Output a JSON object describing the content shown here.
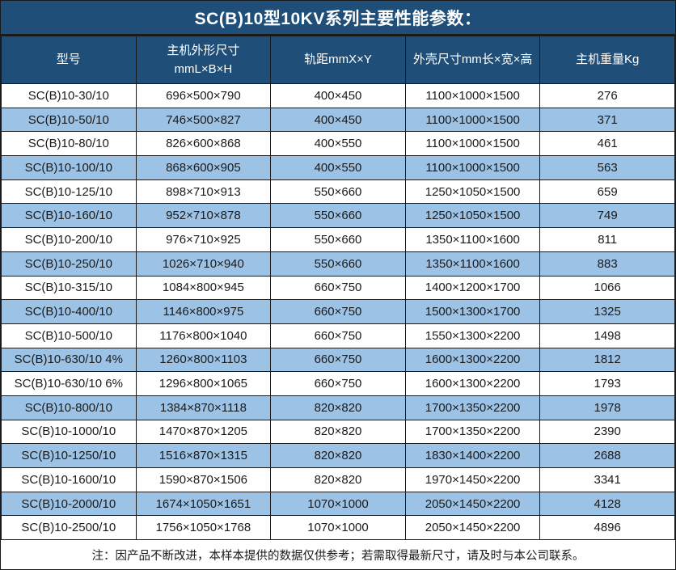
{
  "title": "SC(B)10型10KV系列主要性能参数：",
  "colors": {
    "header_bg": "#1F4E79",
    "alt_row_bg": "#9CC3E6",
    "border": "#1a1a1a",
    "header_text": "#ffffff",
    "body_text": "#1a1a1a"
  },
  "table": {
    "columns": [
      {
        "label": "型号"
      },
      {
        "label_line1": "主机外形尺寸",
        "label_line2": "mmL×B×H"
      },
      {
        "label": "轨距mmX×Y"
      },
      {
        "label": "外壳尺寸mm长×宽×高"
      },
      {
        "label": "主机重量Kg"
      }
    ],
    "rows": [
      [
        "SC(B)10-30/10",
        "696×500×790",
        "400×450",
        "1100×1000×1500",
        "276"
      ],
      [
        "SC(B)10-50/10",
        "746×500×827",
        "400×450",
        "1100×1000×1500",
        "371"
      ],
      [
        "SC(B)10-80/10",
        "826×600×868",
        "400×550",
        "1100×1000×1500",
        "461"
      ],
      [
        "SC(B)10-100/10",
        "868×600×905",
        "400×550",
        "1100×1000×1500",
        "563"
      ],
      [
        "SC(B)10-125/10",
        "898×710×913",
        "550×660",
        "1250×1050×1500",
        "659"
      ],
      [
        "SC(B)10-160/10",
        "952×710×878",
        "550×660",
        "1250×1050×1500",
        "749"
      ],
      [
        "SC(B)10-200/10",
        "976×710×925",
        "550×660",
        "1350×1100×1600",
        "811"
      ],
      [
        "SC(B)10-250/10",
        "1026×710×940",
        "550×660",
        "1350×1100×1600",
        "883"
      ],
      [
        "SC(B)10-315/10",
        "1084×800×945",
        "660×750",
        "1400×1200×1700",
        "1066"
      ],
      [
        "SC(B)10-400/10",
        "1146×800×975",
        "660×750",
        "1500×1300×1700",
        "1325"
      ],
      [
        "SC(B)10-500/10",
        "1176×800×1040",
        "660×750",
        "1550×1300×2200",
        "1498"
      ],
      [
        "SC(B)10-630/10 4%",
        "1260×800×1103",
        "660×750",
        "1600×1300×2200",
        "1812"
      ],
      [
        "SC(B)10-630/10 6%",
        "1296×800×1065",
        "660×750",
        "1600×1300×2200",
        "1793"
      ],
      [
        "SC(B)10-800/10",
        "1384×870×1118",
        "820×820",
        "1700×1350×2200",
        "1978"
      ],
      [
        "SC(B)10-1000/10",
        "1470×870×1205",
        "820×820",
        "1700×1350×2200",
        "2390"
      ],
      [
        "SC(B)10-1250/10",
        "1516×870×1315",
        "820×820",
        "1830×1400×2200",
        "2688"
      ],
      [
        "SC(B)10-1600/10",
        "1590×870×1506",
        "820×820",
        "1970×1450×2200",
        "3341"
      ],
      [
        "SC(B)10-2000/10",
        "1674×1050×1651",
        "1070×1000",
        "2050×1450×2200",
        "4128"
      ],
      [
        "SC(B)10-2500/10",
        "1756×1050×1768",
        "1070×1000",
        "2050×1450×2200",
        "4896"
      ]
    ]
  },
  "note": "注：因产品不断改进，本样本提供的数据仅供参考；若需取得最新尺寸，请及时与本公司联系。"
}
